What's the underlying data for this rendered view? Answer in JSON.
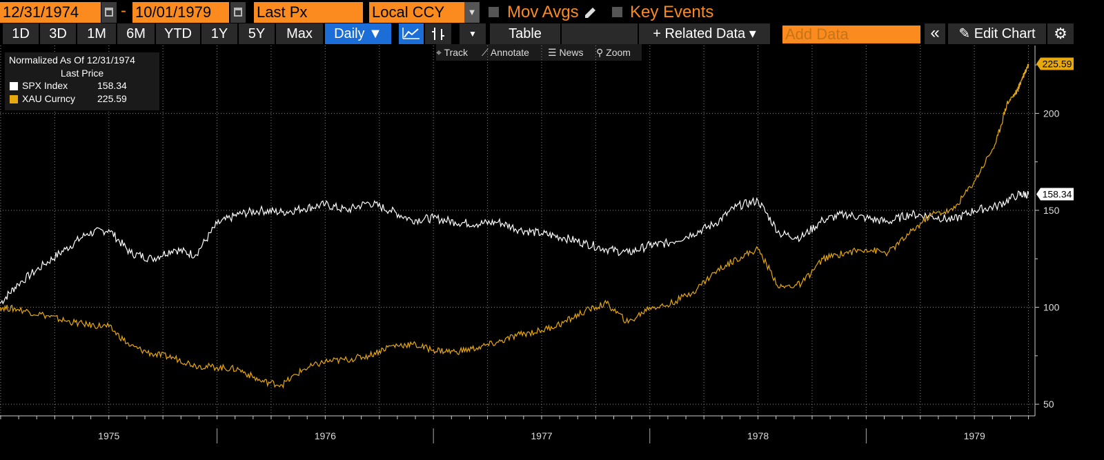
{
  "toolbar": {
    "start_date": "12/31/1974",
    "separator": "-",
    "end_date": "10/01/1979",
    "field": "Last Px",
    "currency": "Local CCY",
    "mov_avgs": "Mov Avgs",
    "key_events": "Key Events"
  },
  "ranges": [
    "1D",
    "3D",
    "1M",
    "6M",
    "YTD",
    "1Y",
    "5Y",
    "Max"
  ],
  "frequency": "Daily ▼",
  "table_label": "Table",
  "related_data": "+ Related Data ▾",
  "add_data_placeholder": "Add Data",
  "collapse": "«",
  "edit_chart": "Edit Chart",
  "chart_tools": {
    "track": "Track",
    "annotate": "Annotate",
    "news": "News",
    "zoom": "Zoom"
  },
  "legend": {
    "normalized": "Normalized As Of 12/31/1974",
    "field": "Last Price",
    "items": [
      {
        "name": "SPX Index",
        "value": "158.34"
      },
      {
        "name": "XAU Curncy",
        "value": "225.59"
      }
    ]
  },
  "colors": {
    "spx": "#ffffff",
    "xau": "#e8a90c",
    "accent": "#fb8b1e",
    "blue": "#1b6ed8"
  },
  "chart_data": {
    "type": "line",
    "x_start": "12/31/1974",
    "x_end": "10/01/1979",
    "x_ticks": [
      "1975",
      "1976",
      "1977",
      "1978",
      "1979"
    ],
    "y_ticks": [
      50,
      100,
      150,
      200
    ],
    "ylim": [
      44,
      235
    ],
    "grid": true,
    "legend_position": "top-left",
    "series": [
      {
        "name": "SPX Index",
        "last": "158.34",
        "x": [
          1974.997,
          1975.08,
          1975.2,
          1975.3,
          1975.4,
          1975.5,
          1975.6,
          1975.7,
          1975.8,
          1975.9,
          1976.0,
          1976.1,
          1976.2,
          1976.3,
          1976.4,
          1976.5,
          1976.6,
          1976.7,
          1976.8,
          1976.9,
          1977.0,
          1977.1,
          1977.2,
          1977.3,
          1977.4,
          1977.5,
          1977.6,
          1977.7,
          1977.8,
          1977.9,
          1978.0,
          1978.08,
          1978.2,
          1978.3,
          1978.4,
          1978.5,
          1978.6,
          1978.7,
          1978.8,
          1978.9,
          1979.0,
          1979.1,
          1979.2,
          1979.3,
          1979.4,
          1979.5,
          1979.6,
          1979.7,
          1979.75
        ],
        "values": [
          102,
          112,
          122,
          130,
          138,
          140,
          128,
          125,
          130,
          127,
          143,
          148,
          150,
          149,
          151,
          153,
          150,
          154,
          150,
          145,
          146,
          144,
          143,
          144,
          140,
          138,
          136,
          133,
          130,
          128,
          132,
          133,
          138,
          143,
          152,
          155,
          138,
          136,
          145,
          148,
          146,
          144,
          148,
          147,
          145,
          150,
          152,
          158,
          158.34
        ]
      },
      {
        "name": "XAU Curncy",
        "last": "225.59",
        "x": [
          1974.997,
          1975.08,
          1975.2,
          1975.3,
          1975.4,
          1975.5,
          1975.6,
          1975.7,
          1975.8,
          1975.9,
          1976.0,
          1976.1,
          1976.2,
          1976.3,
          1976.4,
          1976.5,
          1976.6,
          1976.7,
          1976.8,
          1976.9,
          1977.0,
          1977.1,
          1977.2,
          1977.3,
          1977.4,
          1977.5,
          1977.6,
          1977.7,
          1977.8,
          1977.9,
          1978.0,
          1978.08,
          1978.2,
          1978.3,
          1978.4,
          1978.5,
          1978.6,
          1978.7,
          1978.8,
          1978.9,
          1979.0,
          1979.1,
          1979.2,
          1979.3,
          1979.4,
          1979.5,
          1979.6,
          1979.65,
          1979.7,
          1979.72,
          1979.75
        ],
        "values": [
          100,
          99,
          96,
          93,
          91,
          90,
          80,
          76,
          74,
          70,
          69,
          68,
          62,
          60,
          68,
          72,
          73,
          75,
          80,
          81,
          78,
          77,
          79,
          82,
          86,
          88,
          92,
          98,
          102,
          92,
          100,
          101,
          108,
          118,
          125,
          130,
          110,
          112,
          125,
          128,
          130,
          128,
          138,
          148,
          150,
          165,
          185,
          205,
          212,
          218,
          225.59
        ]
      }
    ]
  }
}
